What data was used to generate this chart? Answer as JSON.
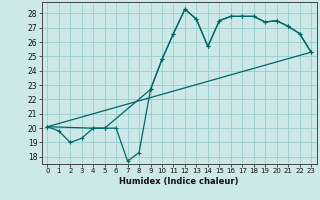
{
  "title": "",
  "xlabel": "Humidex (Indice chaleur)",
  "bg_color": "#cce8e8",
  "grid_color": "#99cccc",
  "line_color": "#006666",
  "xlim": [
    -0.5,
    23.5
  ],
  "ylim": [
    17.5,
    28.8
  ],
  "yticks": [
    18,
    19,
    20,
    21,
    22,
    23,
    24,
    25,
    26,
    27,
    28
  ],
  "xticks": [
    0,
    1,
    2,
    3,
    4,
    5,
    6,
    7,
    8,
    9,
    10,
    11,
    12,
    13,
    14,
    15,
    16,
    17,
    18,
    19,
    20,
    21,
    22,
    23
  ],
  "series1_x": [
    0,
    1,
    2,
    3,
    4,
    5,
    6,
    7,
    8,
    9,
    10,
    11,
    12,
    13,
    14,
    15,
    16,
    17,
    18,
    19,
    20,
    21,
    22,
    23
  ],
  "series1_y": [
    20.1,
    19.8,
    19.0,
    19.3,
    20.0,
    20.0,
    20.0,
    17.7,
    18.3,
    22.7,
    24.8,
    26.6,
    28.3,
    27.6,
    25.7,
    27.5,
    27.8,
    27.8,
    27.8,
    27.4,
    27.5,
    27.1,
    26.6,
    25.3
  ],
  "series2_x": [
    0,
    4,
    5,
    9,
    10,
    11,
    12,
    13,
    14,
    15,
    16,
    17,
    18,
    19,
    20,
    21,
    22,
    23
  ],
  "series2_y": [
    20.1,
    20.0,
    20.0,
    22.7,
    24.8,
    26.6,
    28.3,
    27.6,
    25.7,
    27.5,
    27.8,
    27.8,
    27.8,
    27.4,
    27.5,
    27.1,
    26.6,
    25.3
  ],
  "series3_x": [
    0,
    23
  ],
  "series3_y": [
    20.1,
    25.3
  ]
}
